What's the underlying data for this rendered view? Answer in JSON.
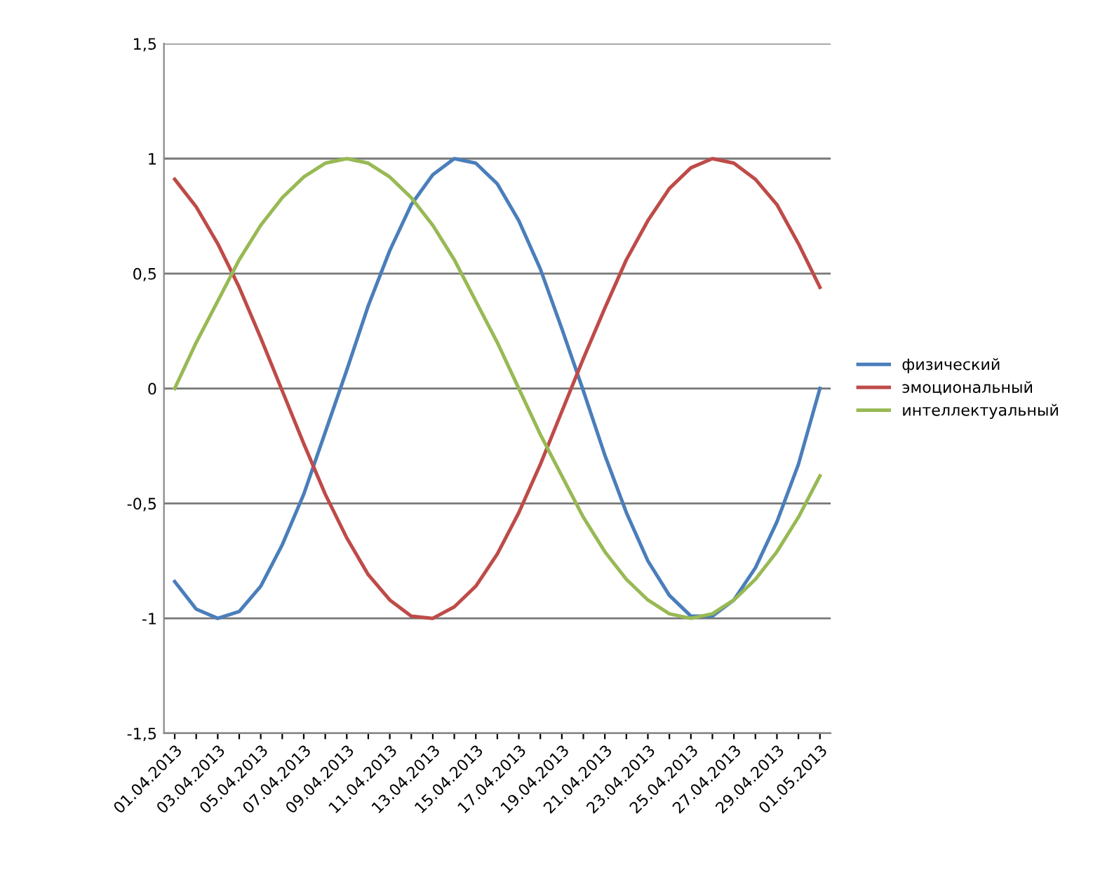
{
  "chart_data": {
    "type": "line",
    "categories": [
      "01.04.2013",
      null,
      "03.04.2013",
      null,
      "05.04.2013",
      null,
      "07.04.2013",
      null,
      "09.04.2013",
      null,
      "11.04.2013",
      null,
      "13.04.2013",
      null,
      "15.04.2013",
      null,
      "17.04.2013",
      null,
      "19.04.2013",
      null,
      "21.04.2013",
      null,
      "23.04.2013",
      null,
      "25.04.2013",
      null,
      "27.04.2013",
      null,
      "29.04.2013",
      null,
      "01.05.2013"
    ],
    "series": [
      {
        "name": "физический",
        "color": "#4a7ebb",
        "values": [
          -0.84,
          -0.96,
          -1.0,
          -0.97,
          -0.86,
          -0.68,
          -0.46,
          -0.19,
          0.08,
          0.36,
          0.6,
          0.8,
          0.93,
          1.0,
          0.98,
          0.89,
          0.73,
          0.52,
          0.26,
          -0.01,
          -0.29,
          -0.54,
          -0.75,
          -0.9,
          -0.99,
          -0.99,
          -0.92,
          -0.78,
          -0.58,
          -0.33,
          0.0
        ]
      },
      {
        "name": "эмоциональный",
        "color": "#be4b48",
        "values": [
          0.91,
          0.79,
          0.63,
          0.44,
          0.22,
          -0.01,
          -0.24,
          -0.46,
          -0.65,
          -0.81,
          -0.92,
          -0.99,
          -1.0,
          -0.95,
          -0.86,
          -0.72,
          -0.54,
          -0.33,
          -0.1,
          0.13,
          0.35,
          0.56,
          0.73,
          0.87,
          0.96,
          1.0,
          0.98,
          0.91,
          0.8,
          0.63,
          0.44
        ]
      },
      {
        "name": "интеллектуальный",
        "color": "#98b954",
        "values": [
          0.0,
          0.2,
          0.38,
          0.56,
          0.71,
          0.83,
          0.92,
          0.98,
          1.0,
          0.98,
          0.92,
          0.83,
          0.71,
          0.56,
          0.38,
          0.2,
          0.0,
          -0.2,
          -0.38,
          -0.56,
          -0.71,
          -0.83,
          -0.92,
          -0.98,
          -1.0,
          -0.98,
          -0.92,
          -0.83,
          -0.71,
          -0.56,
          -0.38
        ]
      }
    ],
    "ylim": [
      -1.5,
      1.5
    ],
    "yticks": [
      {
        "value": 1.5,
        "label": "1,5"
      },
      1,
      {
        "value": 0.5,
        "label": "0,5"
      },
      0,
      {
        "value": -0.5,
        "label": "-0,5"
      },
      -1,
      {
        "value": -1.5,
        "label": "-1,5"
      }
    ],
    "grid": "y",
    "legend": "right",
    "marker": "none",
    "line_style": "solid"
  }
}
